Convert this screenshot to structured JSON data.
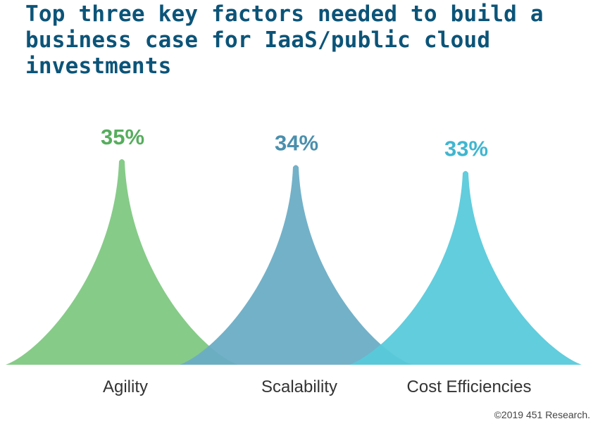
{
  "title": "Top three key factors needed to build a business case for IaaS/public cloud investments",
  "copyright": "©2019 451 Research.",
  "colors": {
    "title": "#0c5478",
    "label_text": "#333333"
  },
  "chart_data": {
    "type": "bar",
    "categories": [
      "Agility",
      "Scalability",
      "Cost Efficiencies"
    ],
    "values": [
      35,
      34,
      33
    ],
    "value_labels": [
      "35%",
      "34%",
      "33%"
    ],
    "unit": "%",
    "colors": [
      "#7ec881",
      "#6aacc5",
      "#57cadb"
    ],
    "label_colors": [
      "#56ad5d",
      "#4a8fad",
      "#3fb6d0"
    ],
    "ylim": [
      0,
      35
    ],
    "grid": false,
    "legend": "none"
  }
}
